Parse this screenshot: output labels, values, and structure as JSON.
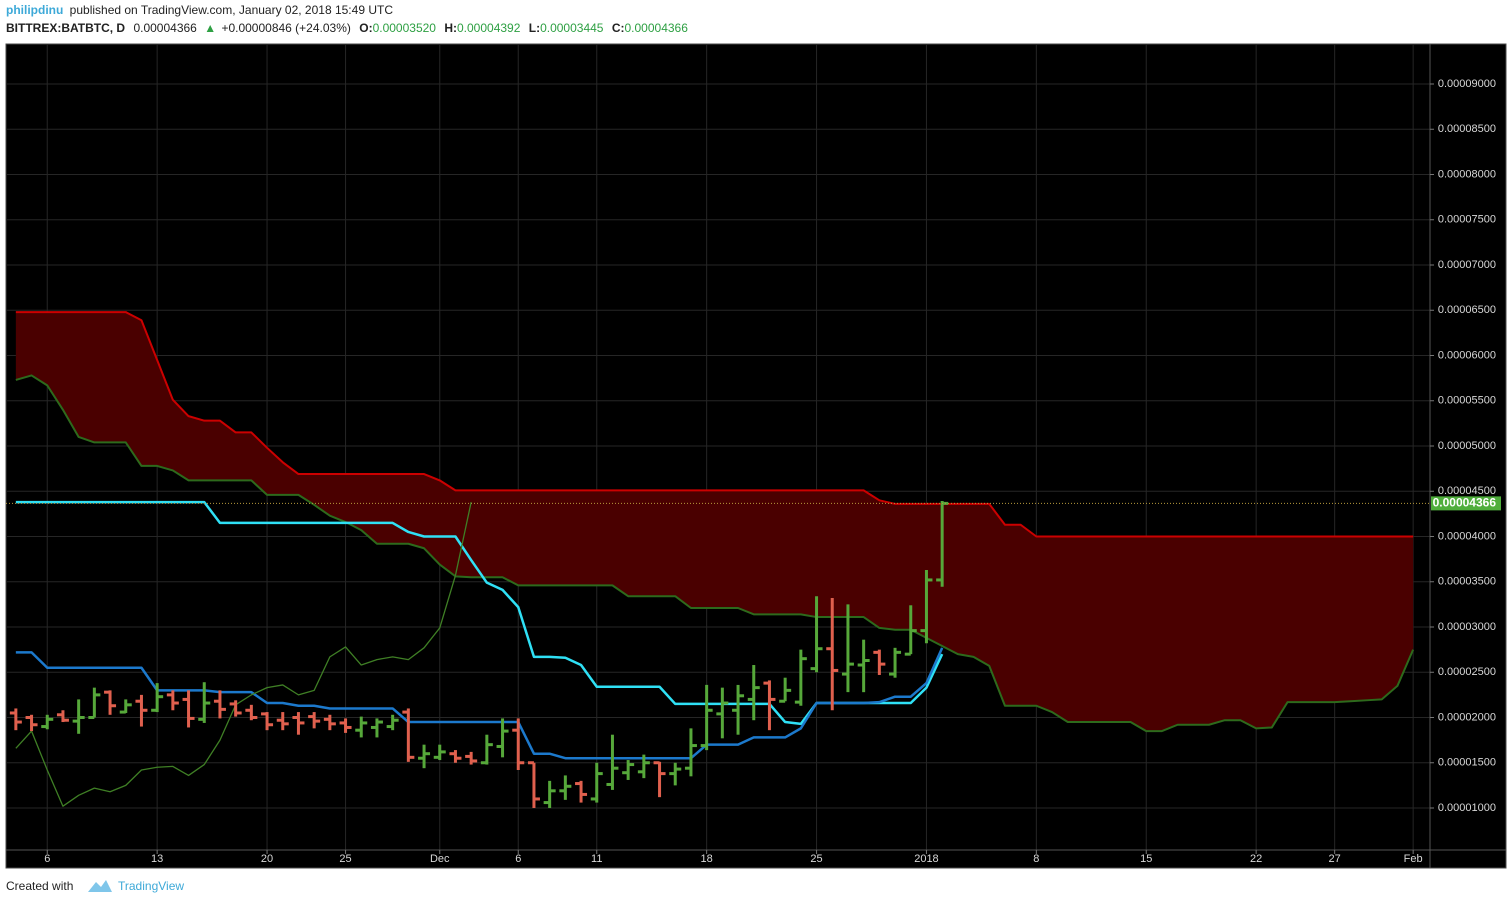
{
  "header": {
    "author": "philipdinu",
    "published": "published on TradingView.com, January 02, 2018 15:49 UTC",
    "symbol": "BITTREX:BATBTC, D",
    "last": "0.00004366",
    "arrow": "▲",
    "change": "+0.00000846 (+24.03%)",
    "ohlc": [
      {
        "label": "O:",
        "value": "0.00003520"
      },
      {
        "label": "H:",
        "value": "0.00004392"
      },
      {
        "label": "L:",
        "value": "0.00003445"
      },
      {
        "label": "C:",
        "value": "0.00004366"
      }
    ]
  },
  "footer": {
    "created": "Created with",
    "brand": "TradingView"
  },
  "chart_data": {
    "type": "ohlc",
    "categories": [
      null,
      null,
      "6",
      null,
      null,
      null,
      null,
      null,
      null,
      "13",
      null,
      null,
      null,
      null,
      null,
      null,
      "20",
      null,
      null,
      null,
      null,
      "25",
      null,
      null,
      null,
      null,
      null,
      "Dec",
      null,
      null,
      null,
      null,
      "6",
      null,
      null,
      null,
      null,
      "11",
      null,
      null,
      null,
      null,
      null,
      null,
      "18",
      null,
      null,
      null,
      null,
      null,
      null,
      "25",
      null,
      null,
      null,
      null,
      null,
      null,
      "2018",
      null,
      null,
      null,
      null,
      null,
      null,
      "8",
      null,
      null,
      null,
      null,
      null,
      null,
      "15",
      null,
      null,
      null,
      null,
      null,
      null,
      "22",
      null,
      null,
      null,
      null,
      "27",
      null,
      null,
      null,
      null,
      "Feb"
    ],
    "up_color": "#56a83a",
    "down_color": "#e0604e",
    "open": [
      2.05e-05,
      2e-05,
      1.9e-05,
      2.03e-05,
      1.96e-05,
      2e-05,
      2.28e-05,
      2.06e-05,
      2.18e-05,
      2.08e-05,
      2.25e-05,
      2.2e-05,
      1.98e-05,
      2.18e-05,
      2.15e-05,
      2.08e-05,
      2.04e-05,
      1.97e-05,
      2e-05,
      2.01e-05,
      1.98e-05,
      1.94e-05,
      1.86e-05,
      1.89e-05,
      1.9e-05,
      2.06e-05,
      1.55e-05,
      1.56e-05,
      1.6e-05,
      1.57e-05,
      1.5e-05,
      1.68e-05,
      1.86e-05,
      1.5e-05,
      1.06e-05,
      1.19e-05,
      1.27e-05,
      1.1e-05,
      1.26e-05,
      1.39e-05,
      1.4e-05,
      1.5e-05,
      1.38e-05,
      1.44e-05,
      1.69e-05,
      2.04e-05,
      2.08e-05,
      2.2e-05,
      2.38e-05,
      2.18e-05,
      2.17e-05,
      2.54e-05,
      2.76e-05,
      2.48e-05,
      2.58e-05,
      2.72e-05,
      2.48e-05,
      2.7e-05,
      2.96e-05,
      3.52e-05,
      null,
      null,
      null,
      null,
      null,
      null,
      null,
      null,
      null,
      null,
      null,
      null,
      null,
      null,
      null,
      null,
      null,
      null,
      null,
      null,
      null,
      null,
      null,
      null,
      null,
      null,
      null,
      null,
      null,
      null
    ],
    "high": [
      2.1e-05,
      2.03e-05,
      2.03e-05,
      2.08e-05,
      2.2e-05,
      2.33e-05,
      2.3e-05,
      2.2e-05,
      2.25e-05,
      2.38e-05,
      2.3e-05,
      2.3e-05,
      2.39e-05,
      2.3e-05,
      2.19e-05,
      2.14e-05,
      2.06e-05,
      2.06e-05,
      2.06e-05,
      2.06e-05,
      2.03e-05,
      1.99e-05,
      2.01e-05,
      1.99e-05,
      2.03e-05,
      2.1e-05,
      1.7e-05,
      1.7e-05,
      1.64e-05,
      1.62e-05,
      1.81e-05,
      1.99e-05,
      1.99e-05,
      1.5e-05,
      1.3e-05,
      1.36e-05,
      1.3e-05,
      1.5e-05,
      1.81e-05,
      1.53e-05,
      1.59e-05,
      1.51e-05,
      1.5e-05,
      1.88e-05,
      2.36e-05,
      2.33e-05,
      2.36e-05,
      2.58e-05,
      2.41e-05,
      2.44e-05,
      2.75e-05,
      3.34e-05,
      3.32e-05,
      3.25e-05,
      2.86e-05,
      2.75e-05,
      2.77e-05,
      3.24e-05,
      3.63e-05,
      4.392e-05,
      null,
      null,
      null,
      null,
      null,
      null,
      null,
      null,
      null,
      null,
      null,
      null,
      null,
      null,
      null,
      null,
      null,
      null,
      null,
      null,
      null,
      null,
      null,
      null,
      null,
      null,
      null,
      null,
      null,
      null
    ],
    "low": [
      1.86e-05,
      1.85e-05,
      1.87e-05,
      1.95e-05,
      1.82e-05,
      2e-05,
      2.03e-05,
      2.05e-05,
      1.9e-05,
      2.06e-05,
      2.08e-05,
      1.89e-05,
      1.94e-05,
      1.99e-05,
      2.01e-05,
      1.97e-05,
      1.86e-05,
      1.86e-05,
      1.81e-05,
      1.88e-05,
      1.86e-05,
      1.83e-05,
      1.78e-05,
      1.78e-05,
      1.86e-05,
      1.51e-05,
      1.44e-05,
      1.53e-05,
      1.5e-05,
      1.48e-05,
      1.48e-05,
      1.56e-05,
      1.42e-05,
      1e-05,
      1e-05,
      1.09e-05,
      1.06e-05,
      1.06e-05,
      1.2e-05,
      1.31e-05,
      1.33e-05,
      1.12e-05,
      1.25e-05,
      1.35e-05,
      1.64e-05,
      1.77e-05,
      1.81e-05,
      1.97e-05,
      1.86e-05,
      2.18e-05,
      2.13e-05,
      2.5e-05,
      2.08e-05,
      2.28e-05,
      2.28e-05,
      2.47e-05,
      2.44e-05,
      2.7e-05,
      2.82e-05,
      3.445e-05,
      null,
      null,
      null,
      null,
      null,
      null,
      null,
      null,
      null,
      null,
      null,
      null,
      null,
      null,
      null,
      null,
      null,
      null,
      null,
      null,
      null,
      null,
      null,
      null,
      null,
      null,
      null,
      null,
      null,
      null
    ],
    "close": [
      1.95e-05,
      1.92e-05,
      1.98e-05,
      1.97e-05,
      2e-05,
      2.25e-05,
      2.13e-05,
      2.14e-05,
      2.08e-05,
      2.23e-05,
      2.16e-05,
      1.99e-05,
      2.16e-05,
      2.09e-05,
      2.05e-05,
      2e-05,
      1.92e-05,
      1.93e-05,
      1.94e-05,
      1.96e-05,
      1.93e-05,
      1.89e-05,
      1.94e-05,
      1.95e-05,
      1.97e-05,
      1.56e-05,
      1.6e-05,
      1.62e-05,
      1.55e-05,
      1.52e-05,
      1.7e-05,
      1.85e-05,
      1.5e-05,
      1.1e-05,
      1.19e-05,
      1.24e-05,
      1.15e-05,
      1.38e-05,
      1.44e-05,
      1.48e-05,
      1.5e-05,
      1.38e-05,
      1.43e-05,
      1.69e-05,
      2.08e-05,
      2.16e-05,
      2.24e-05,
      2.33e-05,
      2.2e-05,
      2.3e-05,
      2.65e-05,
      2.76e-05,
      2.52e-05,
      2.59e-05,
      2.63e-05,
      2.59e-05,
      2.72e-05,
      2.96e-05,
      3.52e-05,
      4.366e-05,
      null,
      null,
      null,
      null,
      null,
      null,
      null,
      null,
      null,
      null,
      null,
      null,
      null,
      null,
      null,
      null,
      null,
      null,
      null,
      null,
      null,
      null,
      null,
      null,
      null,
      null,
      null,
      null,
      null,
      null
    ],
    "series": [
      {
        "color": "#2fe0f5",
        "values": [
          4.38e-05,
          4.38e-05,
          4.38e-05,
          4.38e-05,
          4.38e-05,
          4.38e-05,
          4.38e-05,
          4.38e-05,
          4.38e-05,
          4.38e-05,
          4.38e-05,
          4.38e-05,
          4.38e-05,
          4.15e-05,
          4.15e-05,
          4.15e-05,
          4.15e-05,
          4.15e-05,
          4.15e-05,
          4.15e-05,
          4.15e-05,
          4.15e-05,
          4.15e-05,
          4.15e-05,
          4.15e-05,
          4.05e-05,
          4e-05,
          4e-05,
          4e-05,
          3.74e-05,
          3.49e-05,
          3.41e-05,
          3.22e-05,
          2.67e-05,
          2.67e-05,
          2.66e-05,
          2.58e-05,
          2.34e-05,
          2.34e-05,
          2.34e-05,
          2.34e-05,
          2.34e-05,
          2.15e-05,
          2.15e-05,
          2.15e-05,
          2.15e-05,
          2.15e-05,
          2.15e-05,
          2.15e-05,
          1.95e-05,
          1.93e-05,
          2.16e-05,
          2.16e-05,
          2.16e-05,
          2.16e-05,
          2.16e-05,
          2.16e-05,
          2.16e-05,
          2.33e-05,
          2.7e-05,
          null,
          null,
          null,
          null,
          null,
          null,
          null,
          null,
          null,
          null,
          null,
          null,
          null,
          null,
          null,
          null,
          null,
          null,
          null,
          null,
          null,
          null,
          null,
          null,
          null,
          null,
          null,
          null,
          null,
          null
        ]
      },
      {
        "color": "#1c79cc",
        "values": [
          2.72e-05,
          2.72e-05,
          2.55e-05,
          2.55e-05,
          2.55e-05,
          2.55e-05,
          2.55e-05,
          2.55e-05,
          2.55e-05,
          2.3e-05,
          2.3e-05,
          2.3e-05,
          2.3e-05,
          2.28e-05,
          2.28e-05,
          2.28e-05,
          2.16e-05,
          2.16e-05,
          2.13e-05,
          2.13e-05,
          2.1e-05,
          2.1e-05,
          2.1e-05,
          2.1e-05,
          2.1e-05,
          1.95e-05,
          1.95e-05,
          1.95e-05,
          1.95e-05,
          1.95e-05,
          1.95e-05,
          1.95e-05,
          1.95e-05,
          1.6e-05,
          1.6e-05,
          1.55e-05,
          1.55e-05,
          1.55e-05,
          1.55e-05,
          1.55e-05,
          1.55e-05,
          1.55e-05,
          1.55e-05,
          1.55e-05,
          1.7e-05,
          1.7e-05,
          1.7e-05,
          1.78e-05,
          1.78e-05,
          1.78e-05,
          1.88e-05,
          2.16e-05,
          2.16e-05,
          2.16e-05,
          2.16e-05,
          2.17e-05,
          2.23e-05,
          2.23e-05,
          2.38e-05,
          2.77e-05,
          null,
          null,
          null,
          null,
          null,
          null,
          null,
          null,
          null,
          null,
          null,
          null,
          null,
          null,
          null,
          null,
          null,
          null,
          null,
          null,
          null,
          null,
          null,
          null,
          null,
          null,
          null,
          null,
          null,
          null
        ]
      },
      {
        "color": "#3f7f25",
        "values": [
          1.66e-05,
          1.85e-05,
          1.42e-05,
          1.02e-05,
          1.14e-05,
          1.22e-05,
          1.18e-05,
          1.25e-05,
          1.42e-05,
          1.45e-05,
          1.46e-05,
          1.36e-05,
          1.48e-05,
          1.75e-05,
          2.14e-05,
          2.25e-05,
          2.33e-05,
          2.36e-05,
          2.25e-05,
          2.3e-05,
          2.67e-05,
          2.78e-05,
          2.58e-05,
          2.64e-05,
          2.67e-05,
          2.64e-05,
          2.77e-05,
          2.99e-05,
          3.57e-05,
          4.38e-05,
          null,
          null,
          null,
          null,
          null,
          null,
          null,
          null,
          null,
          null,
          null,
          null,
          null,
          null,
          null,
          null,
          null,
          null,
          null,
          null,
          null,
          null,
          null,
          null,
          null,
          null,
          null,
          null,
          null,
          null,
          null,
          null,
          null,
          null,
          null,
          null,
          null,
          null,
          null,
          null,
          null,
          null,
          null,
          null,
          null,
          null,
          null,
          null,
          null,
          null,
          null,
          null,
          null,
          null,
          null,
          null,
          null,
          null,
          null,
          null
        ]
      }
    ],
    "cloud": {
      "fill": "#4a0000",
      "upper": {
        "color": "#cc0000",
        "values": [
          6.48e-05,
          6.48e-05,
          6.48e-05,
          6.48e-05,
          6.48e-05,
          6.48e-05,
          6.48e-05,
          6.48e-05,
          6.39e-05,
          5.95e-05,
          5.51e-05,
          5.33e-05,
          5.28e-05,
          5.28e-05,
          5.15e-05,
          5.15e-05,
          4.98e-05,
          4.82e-05,
          4.69e-05,
          4.69e-05,
          4.69e-05,
          4.69e-05,
          4.69e-05,
          4.69e-05,
          4.69e-05,
          4.69e-05,
          4.69e-05,
          4.62e-05,
          4.51e-05,
          4.51e-05,
          4.51e-05,
          4.51e-05,
          4.51e-05,
          4.51e-05,
          4.51e-05,
          4.51e-05,
          4.51e-05,
          4.51e-05,
          4.51e-05,
          4.51e-05,
          4.51e-05,
          4.51e-05,
          4.51e-05,
          4.51e-05,
          4.51e-05,
          4.51e-05,
          4.51e-05,
          4.51e-05,
          4.51e-05,
          4.51e-05,
          4.51e-05,
          4.51e-05,
          4.51e-05,
          4.51e-05,
          4.51e-05,
          4.4e-05,
          4.36e-05,
          4.36e-05,
          4.36e-05,
          4.36e-05,
          4.36e-05,
          4.36e-05,
          4.36e-05,
          4.13e-05,
          4.13e-05,
          4e-05,
          4e-05,
          4e-05,
          4e-05,
          4e-05,
          4e-05,
          4e-05,
          4e-05,
          4e-05,
          4e-05,
          4e-05,
          4e-05,
          4e-05,
          4e-05,
          4e-05,
          4e-05,
          4e-05,
          4e-05,
          4e-05,
          4e-05,
          4e-05,
          4e-05,
          4e-05,
          4e-05,
          4e-05
        ]
      },
      "lower": {
        "color": "#2d6a1c",
        "values": [
          5.73e-05,
          5.78e-05,
          5.67e-05,
          5.4e-05,
          5.1e-05,
          5.04e-05,
          5.04e-05,
          5.04e-05,
          4.78e-05,
          4.78e-05,
          4.73e-05,
          4.62e-05,
          4.62e-05,
          4.62e-05,
          4.62e-05,
          4.62e-05,
          4.46e-05,
          4.46e-05,
          4.46e-05,
          4.35e-05,
          4.23e-05,
          4.16e-05,
          4.07e-05,
          3.92e-05,
          3.92e-05,
          3.92e-05,
          3.87e-05,
          3.69e-05,
          3.56e-05,
          3.55e-05,
          3.55e-05,
          3.55e-05,
          3.46e-05,
          3.46e-05,
          3.46e-05,
          3.46e-05,
          3.46e-05,
          3.46e-05,
          3.46e-05,
          3.34e-05,
          3.34e-05,
          3.34e-05,
          3.34e-05,
          3.21e-05,
          3.21e-05,
          3.21e-05,
          3.21e-05,
          3.14e-05,
          3.14e-05,
          3.14e-05,
          3.14e-05,
          3.11e-05,
          3.11e-05,
          3.11e-05,
          3.11e-05,
          2.99e-05,
          2.97e-05,
          2.97e-05,
          2.88e-05,
          2.79e-05,
          2.7e-05,
          2.67e-05,
          2.57e-05,
          2.13e-05,
          2.13e-05,
          2.13e-05,
          2.06e-05,
          1.95e-05,
          1.95e-05,
          1.95e-05,
          1.95e-05,
          1.95e-05,
          1.85e-05,
          1.85e-05,
          1.92e-05,
          1.92e-05,
          1.92e-05,
          1.97e-05,
          1.97e-05,
          1.88e-05,
          1.89e-05,
          2.17e-05,
          2.17e-05,
          2.17e-05,
          2.17e-05,
          2.18e-05,
          2.19e-05,
          2.2e-05,
          2.35e-05,
          2.75e-05
        ]
      }
    },
    "last_price": 4.366e-05,
    "last_line_color": "#b89a3c",
    "last_box_color": "#4fae3c",
    "ylim": [
      5.36e-06,
      9.442e-05
    ],
    "yticks": [
      {
        "value": 1e-05,
        "label": "0.00001000"
      },
      {
        "value": 1.5e-05,
        "label": "0.00001500"
      },
      {
        "value": 2e-05,
        "label": "0.00002000"
      },
      {
        "value": 2.5e-05,
        "label": "0.00002500"
      },
      {
        "value": 3e-05,
        "label": "0.00003000"
      },
      {
        "value": 3.5e-05,
        "label": "0.00003500"
      },
      {
        "value": 4e-05,
        "label": "0.00004000"
      },
      {
        "value": 4.5e-05,
        "label": "0.00004500"
      },
      {
        "value": 5e-05,
        "label": "0.00005000"
      },
      {
        "value": 5.5e-05,
        "label": "0.00005500"
      },
      {
        "value": 6e-05,
        "label": "0.00006000"
      },
      {
        "value": 6.5e-05,
        "label": "0.00006500"
      },
      {
        "value": 7e-05,
        "label": "0.00007000"
      },
      {
        "value": 7.5e-05,
        "label": "0.00007500"
      },
      {
        "value": 8e-05,
        "label": "0.00008000"
      },
      {
        "value": 8.5e-05,
        "label": "0.00008500"
      },
      {
        "value": 9e-05,
        "label": "0.00009000"
      }
    ],
    "grid": true
  }
}
